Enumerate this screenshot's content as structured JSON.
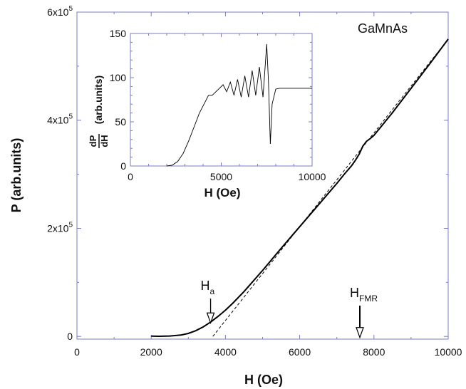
{
  "chart_data": [
    {
      "type": "line",
      "xlabel": "H  (Oe)",
      "ylabel": "P  (arb.units)",
      "sample_label": "GaMnAs",
      "xlim": [
        0,
        10000
      ],
      "ylim": [
        -5000,
        600000
      ],
      "x_ticks": [
        0,
        2000,
        4000,
        6000,
        8000,
        10000
      ],
      "x_tick_labels": [
        "0",
        "2000",
        "4000",
        "6000",
        "8000",
        "10000"
      ],
      "y_ticks": [
        0,
        200000,
        400000,
        600000
      ],
      "y_tick_labels": [
        {
          "base": "0",
          "exp": ""
        },
        {
          "base": "2x10",
          "exp": "5"
        },
        {
          "base": "4x10",
          "exp": "5"
        },
        {
          "base": "6x10",
          "exp": "5"
        }
      ],
      "series": [
        {
          "style": "solid",
          "x": [
            2000,
            2200,
            2500,
            2800,
            3000,
            3200,
            3400,
            3600,
            3800,
            4000,
            4200,
            4500,
            5000,
            5500,
            6000,
            6500,
            7000,
            7200,
            7400,
            7500,
            7600,
            7700,
            7800,
            7900,
            8000,
            8500,
            9000,
            9500,
            10000
          ],
          "y": [
            700,
            300,
            800,
            2500,
            5500,
            10500,
            17500,
            26500,
            37000,
            48500,
            61500,
            83000,
            122000,
            163000,
            203000,
            243000,
            283000,
            300000,
            316000,
            326000,
            337000,
            352000,
            361000,
            366000,
            372000,
            414000,
            459000,
            504000,
            550000
          ]
        },
        {
          "style": "dashed",
          "x": [
            3660,
            10000
          ],
          "y": [
            0,
            550000
          ]
        }
      ],
      "annotations": [
        {
          "main": "H",
          "sub": "a",
          "x": 3600,
          "arrow_from_y": 70000,
          "arrow_to_y": 25000
        },
        {
          "main": "H",
          "sub": "FMR",
          "x": 7620,
          "arrow_from_y": 57000,
          "arrow_to_y": -2000
        }
      ]
    },
    {
      "type": "line",
      "inset": true,
      "xlabel": "H  (Oe)",
      "ylabel_fraction": {
        "numerator": "dP",
        "denominator": "dH"
      },
      "ylabel_units": "(arb.units)",
      "xlim": [
        0,
        10000
      ],
      "ylim": [
        0,
        150
      ],
      "x_ticks": [
        0,
        5000,
        10000
      ],
      "x_tick_labels": [
        "0",
        "5000",
        "10000"
      ],
      "y_ticks": [
        0,
        50,
        100,
        150
      ],
      "y_tick_labels": [
        "0",
        "50",
        "100",
        "150"
      ],
      "series": [
        {
          "style": "solid",
          "x": [
            2000,
            2300,
            2600,
            2900,
            3200,
            3500,
            3800,
            4100,
            4300,
            4500,
            4800,
            5100,
            5300,
            5500,
            5700,
            5900,
            6100,
            6300,
            6500,
            6700,
            6900,
            7100,
            7300,
            7500,
            7600,
            7700,
            7800,
            8000,
            8200,
            8500,
            9000,
            10000
          ],
          "y": [
            0,
            1,
            5,
            14,
            28,
            44,
            60,
            72,
            80,
            80,
            86,
            92,
            84,
            95,
            80,
            98,
            78,
            102,
            78,
            108,
            80,
            112,
            78,
            138,
            95,
            25,
            70,
            87,
            88,
            88,
            88,
            88
          ]
        }
      ]
    }
  ]
}
